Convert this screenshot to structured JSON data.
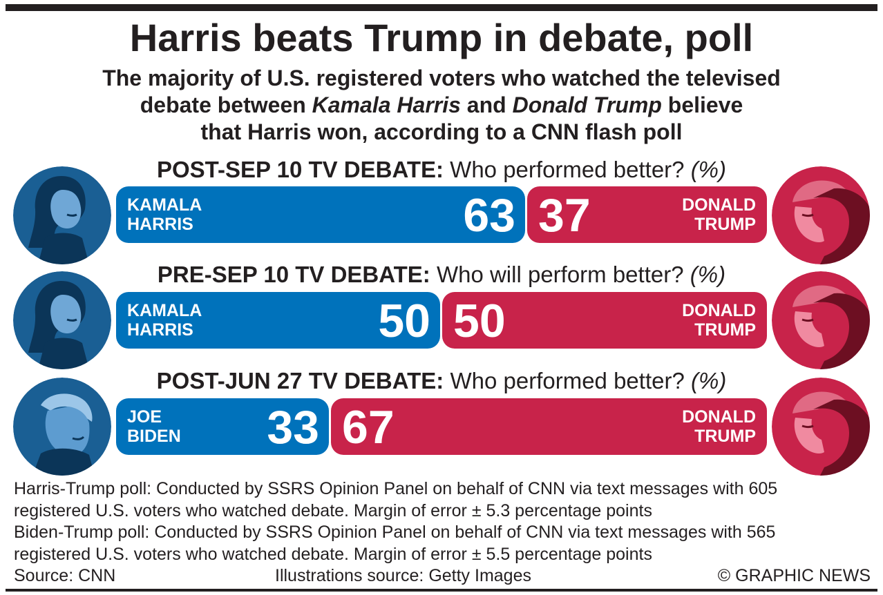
{
  "title": "Harris beats Trump in debate, poll",
  "subtitle": {
    "line1": "The majority of U.S. registered voters who watched the televised",
    "line2_a": "debate between ",
    "line2_harris": "Kamala Harris",
    "line2_b": " and ",
    "line2_trump": "Donald Trump",
    "line2_c": " believe",
    "line3": "that Harris won, according to a CNN flash poll"
  },
  "colors": {
    "blue": "#0072bb",
    "red": "#c8234a",
    "text": "#231f20"
  },
  "icons": {
    "left_portrait": "politician-portrait-blue-icon",
    "right_portrait": "politician-portrait-red-icon"
  },
  "chart_data": [
    {
      "type": "bar",
      "orientation": "horizontal-stacked",
      "heading_bold": "POST-SEP 10 TV DEBATE:",
      "heading_text": " Who performed better? ",
      "heading_unit": "(%)",
      "series": [
        {
          "name_line1": "KAMALA",
          "name_line2": "HARRIS",
          "value": 63,
          "color": "#0072bb"
        },
        {
          "name_line1": "DONALD",
          "name_line2": "TRUMP",
          "value": 37,
          "color": "#c8234a"
        }
      ]
    },
    {
      "type": "bar",
      "orientation": "horizontal-stacked",
      "heading_bold": "PRE-SEP 10 TV DEBATE:",
      "heading_text": " Who will perform better? ",
      "heading_unit": "(%)",
      "series": [
        {
          "name_line1": "KAMALA",
          "name_line2": "HARRIS",
          "value": 50,
          "color": "#0072bb"
        },
        {
          "name_line1": "DONALD",
          "name_line2": "TRUMP",
          "value": 50,
          "color": "#c8234a"
        }
      ]
    },
    {
      "type": "bar",
      "orientation": "horizontal-stacked",
      "heading_bold": "POST-JUN 27 TV DEBATE:",
      "heading_text": " Who performed better? ",
      "heading_unit": "(%)",
      "series": [
        {
          "name_line1": "JOE",
          "name_line2": "BIDEN",
          "value": 33,
          "color": "#0072bb"
        },
        {
          "name_line1": "DONALD",
          "name_line2": "TRUMP",
          "value": 67,
          "color": "#c8234a"
        }
      ]
    }
  ],
  "footnotes": [
    "Harris-Trump poll: Conducted by SSRS Opinion Panel on behalf of CNN via text messages with 605",
    "registered U.S. voters who watched debate. Margin of error ± 5.3 percentage points",
    "Biden-Trump poll: Conducted by SSRS Opinion Panel on behalf of CNN via text messages with 565",
    "registered U.S. voters who watched debate. Margin of error ± 5.5 percentage points"
  ],
  "source": "Source: CNN",
  "illustrations_source": "Illustrations source: Getty Images",
  "credit": "© GRAPHIC NEWS"
}
